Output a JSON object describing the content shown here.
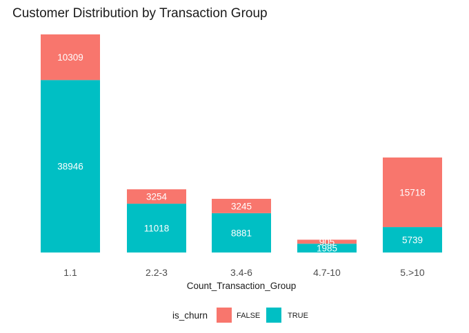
{
  "chart_data": {
    "type": "bar",
    "stacked": true,
    "title": "Customer Distribution by Transaction Group",
    "xlabel": "Count_Transaction_Group",
    "ylabel": "",
    "categories": [
      "1.1",
      "2.2-3",
      "3.4-6",
      "4.7-10",
      "5.>10"
    ],
    "series": [
      {
        "name": "FALSE",
        "color": "#F8766D",
        "values": [
          10309,
          3254,
          3245,
          905,
          15718
        ]
      },
      {
        "name": "TRUE",
        "color": "#00BFC4",
        "values": [
          38946,
          11018,
          8881,
          1985,
          5739
        ]
      }
    ],
    "ylim": [
      0,
      49255
    ],
    "grid": false,
    "legend": {
      "title": "is_churn",
      "position": "bottom"
    }
  }
}
